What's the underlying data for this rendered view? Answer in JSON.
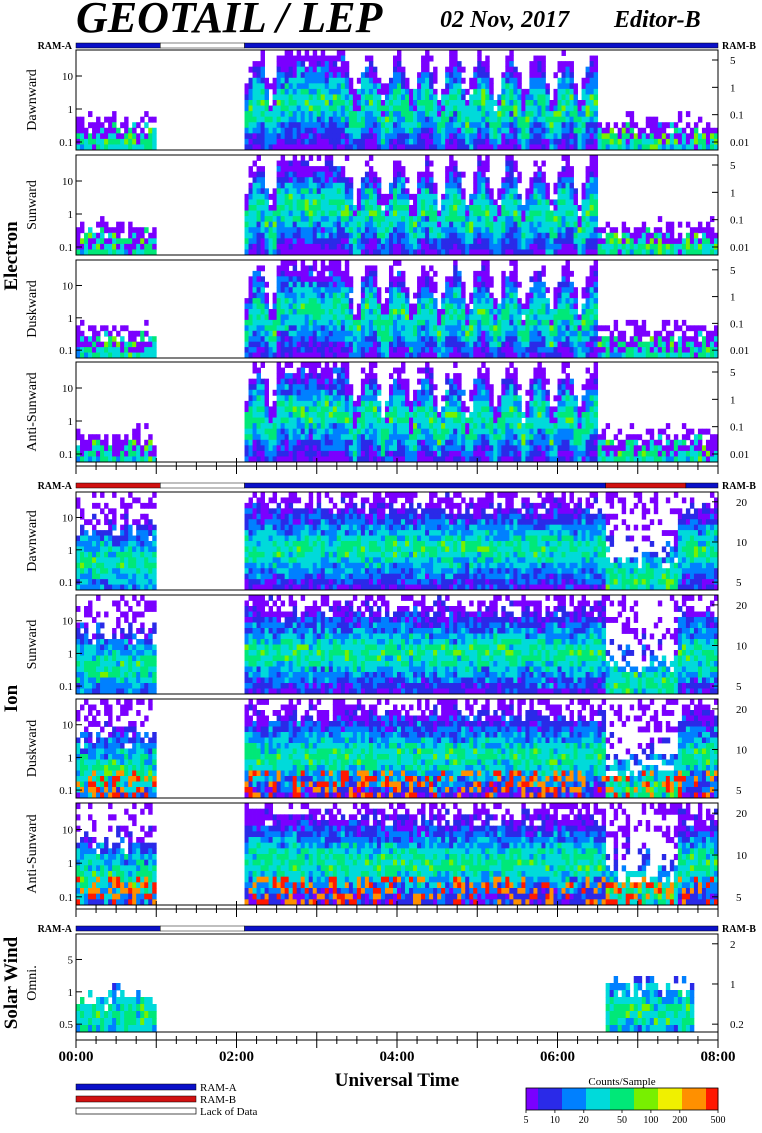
{
  "header": {
    "title": "GEOTAIL / LEP",
    "date": "02 Nov, 2017",
    "editor": "Editor-B"
  },
  "colors": {
    "ram_a": "#0a10c8",
    "ram_b": "#d01010",
    "lack_of_data": "#ffffff",
    "colormap": [
      "#7a00ff",
      "#2a2ae8",
      "#0080ff",
      "#00dada",
      "#00e878",
      "#78f000",
      "#f0f000",
      "#ff9000",
      "#ff1800"
    ]
  },
  "chart_data": {
    "type": "heatmap",
    "time_axis": {
      "title": "Universal Time",
      "range_hours": [
        0,
        8
      ],
      "tick_labels": [
        "00:00",
        "02:00",
        "04:00",
        "06:00",
        "08:00"
      ]
    },
    "groups": [
      {
        "name": "Electron",
        "ram_label_left": "RAM-A",
        "ram_label_right": "RAM-B",
        "ram_bar": [
          {
            "state": "RAM-A",
            "from": 0.0,
            "to": 1.05
          },
          {
            "state": "Lack of Data",
            "from": 1.05,
            "to": 2.1
          },
          {
            "state": "RAM-A",
            "from": 2.1,
            "to": 8.0
          }
        ],
        "panels": [
          {
            "name": "Dawnward",
            "left_ticks": [
              "10",
              "1",
              "0.1"
            ],
            "right_ticks": [
              "5",
              "1",
              "0.1",
              "0.01"
            ]
          },
          {
            "name": "Sunward",
            "left_ticks": [
              "10",
              "1",
              "0.1"
            ],
            "right_ticks": [
              "5",
              "1",
              "0.1",
              "0.01"
            ]
          },
          {
            "name": "Duskward",
            "left_ticks": [
              "10",
              "1",
              "0.1"
            ],
            "right_ticks": [
              "5",
              "1",
              "0.1",
              "0.01"
            ]
          },
          {
            "name": "Anti-Sunward",
            "left_ticks": [
              "10",
              "1",
              "0.1"
            ],
            "right_ticks": [
              "5",
              "1",
              "0.1",
              "0.01"
            ]
          }
        ],
        "data_intervals": [
          [
            0.0,
            1.0
          ],
          [
            2.1,
            8.0
          ]
        ]
      },
      {
        "name": "Ion",
        "ram_label_left": "RAM-A",
        "ram_label_right": "RAM-B",
        "ram_bar": [
          {
            "state": "RAM-B",
            "from": 0.0,
            "to": 1.05
          },
          {
            "state": "Lack of Data",
            "from": 1.05,
            "to": 2.1
          },
          {
            "state": "RAM-A",
            "from": 2.1,
            "to": 6.6
          },
          {
            "state": "RAM-B",
            "from": 6.6,
            "to": 7.6
          },
          {
            "state": "RAM-A",
            "from": 7.6,
            "to": 8.0
          }
        ],
        "panels": [
          {
            "name": "Dawnward",
            "left_ticks": [
              "10",
              "1",
              "0.1"
            ],
            "right_ticks": [
              "20",
              "10",
              "5"
            ]
          },
          {
            "name": "Sunward",
            "left_ticks": [
              "10",
              "1",
              "0.1"
            ],
            "right_ticks": [
              "20",
              "10",
              "5"
            ]
          },
          {
            "name": "Duskward",
            "left_ticks": [
              "10",
              "1",
              "0.1"
            ],
            "right_ticks": [
              "20",
              "10",
              "5"
            ]
          },
          {
            "name": "Anti-Sunward",
            "left_ticks": [
              "10",
              "1",
              "0.1"
            ],
            "right_ticks": [
              "20",
              "10",
              "5"
            ]
          }
        ],
        "data_intervals": [
          [
            0.0,
            1.0
          ],
          [
            2.1,
            8.0
          ]
        ]
      },
      {
        "name": "Solar Wind",
        "ram_label_left": "RAM-A",
        "ram_label_right": "RAM-B",
        "ram_bar": [
          {
            "state": "RAM-A",
            "from": 0.0,
            "to": 1.05
          },
          {
            "state": "Lack of Data",
            "from": 1.05,
            "to": 2.1
          },
          {
            "state": "RAM-A",
            "from": 2.1,
            "to": 8.0
          }
        ],
        "panels": [
          {
            "name": "Omni.",
            "left_ticks": [
              "5",
              "1",
              "0.5"
            ],
            "right_ticks": [
              "2",
              "1",
              "0.2"
            ]
          }
        ],
        "data_intervals": [
          [
            0.0,
            1.0
          ],
          [
            6.6,
            7.7
          ]
        ]
      }
    ],
    "legend": {
      "items": [
        "RAM-A",
        "RAM-B",
        "Lack of Data"
      ]
    },
    "colorbar": {
      "title": "Counts/Sample",
      "tick_labels": [
        "5",
        "10",
        "20",
        "50",
        "100",
        "200",
        "500"
      ]
    }
  }
}
